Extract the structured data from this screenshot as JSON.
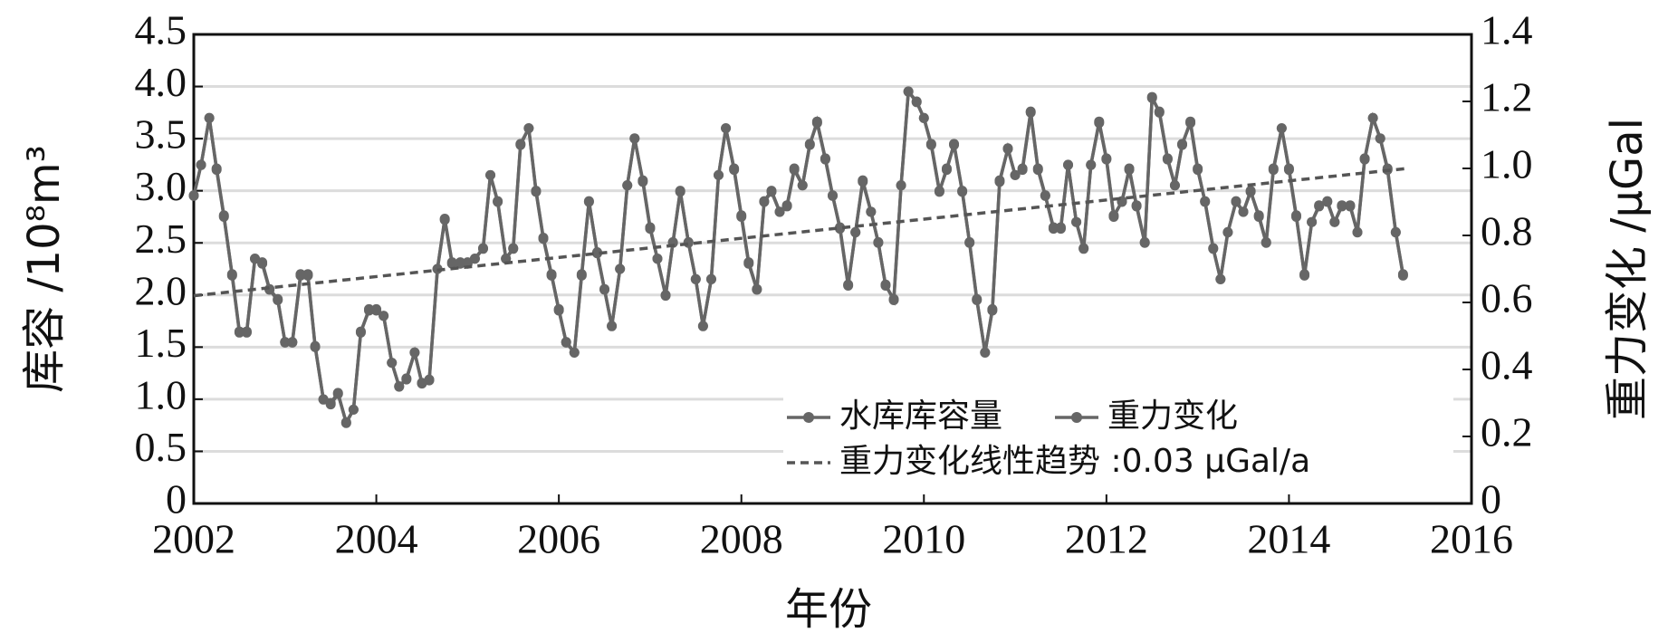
{
  "chart_data": {
    "type": "line",
    "xlabel": "年份",
    "ylabel": "库容 /10⁸m³",
    "y2label": "重力变化 /μGal",
    "xlim": [
      2002,
      2016
    ],
    "xticks": [
      2002,
      2004,
      2006,
      2008,
      2010,
      2012,
      2014,
      2016
    ],
    "ylim": [
      0,
      4.5
    ],
    "yticks": [
      0,
      0.5,
      {
        "value": 1,
        "label": "1.0"
      },
      1.5,
      {
        "value": 2,
        "label": "2.0"
      },
      2.5,
      {
        "value": 3,
        "label": "3.0"
      },
      3.5,
      {
        "value": 4,
        "label": "4.0"
      },
      4.5
    ],
    "y2lim": [
      0,
      1.4
    ],
    "y2ticks": [
      0,
      0.2,
      0.4,
      0.6,
      0.8,
      {
        "value": 1,
        "label": "1.0"
      },
      1.2,
      1.4
    ],
    "grid": true,
    "legend": "lower right",
    "x": [
      2002.0,
      2002.08,
      2002.17,
      2002.25,
      2002.33,
      2002.42,
      2002.5,
      2002.58,
      2002.67,
      2002.75,
      2002.83,
      2002.92,
      2003.0,
      2003.08,
      2003.17,
      2003.25,
      2003.33,
      2003.42,
      2003.5,
      2003.58,
      2003.67,
      2003.75,
      2003.83,
      2003.92,
      2004.0,
      2004.08,
      2004.17,
      2004.25,
      2004.33,
      2004.42,
      2004.5,
      2004.58,
      2004.67,
      2004.75,
      2004.83,
      2004.92,
      2005.0,
      2005.08,
      2005.17,
      2005.25,
      2005.33,
      2005.42,
      2005.5,
      2005.58,
      2005.67,
      2005.75,
      2005.83,
      2005.92,
      2006.0,
      2006.08,
      2006.17,
      2006.25,
      2006.33,
      2006.42,
      2006.5,
      2006.58,
      2006.67,
      2006.75,
      2006.83,
      2006.92,
      2007.0,
      2007.08,
      2007.17,
      2007.25,
      2007.33,
      2007.42,
      2007.5,
      2007.58,
      2007.67,
      2007.75,
      2007.83,
      2007.92,
      2008.0,
      2008.08,
      2008.17,
      2008.25,
      2008.33,
      2008.42,
      2008.5,
      2008.58,
      2008.67,
      2008.75,
      2008.83,
      2008.92,
      2009.0,
      2009.08,
      2009.17,
      2009.25,
      2009.33,
      2009.42,
      2009.5,
      2009.58,
      2009.67,
      2009.75,
      2009.83,
      2009.92,
      2010.0,
      2010.08,
      2010.17,
      2010.25,
      2010.33,
      2010.42,
      2010.5,
      2010.58,
      2010.67,
      2010.75,
      2010.83,
      2010.92,
      2011.0,
      2011.08,
      2011.17,
      2011.25,
      2011.33,
      2011.42,
      2011.5,
      2011.58,
      2011.67,
      2011.75,
      2011.83,
      2011.92,
      2012.0,
      2012.08,
      2012.17,
      2012.25,
      2012.33,
      2012.42,
      2012.5,
      2012.58,
      2012.67,
      2012.75,
      2012.83,
      2012.92,
      2013.0,
      2013.08,
      2013.17,
      2013.25,
      2013.33,
      2013.42,
      2013.5,
      2013.58,
      2013.67,
      2013.75,
      2013.83,
      2013.92,
      2014.0,
      2014.08,
      2014.17,
      2014.25,
      2014.33,
      2014.42,
      2014.5,
      2014.58,
      2014.67,
      2014.75,
      2014.83,
      2014.92,
      2015.0,
      2015.08,
      2015.17,
      2015.25
    ],
    "series": [
      {
        "name": "水库库容量",
        "color": "#666666",
        "axis": "y",
        "values": [
          2.95,
          3.25,
          3.7,
          3.2,
          2.75,
          2.2,
          1.65,
          1.65,
          2.35,
          2.3,
          2.05,
          1.95,
          1.55,
          1.55,
          2.2,
          2.2,
          1.5,
          1.0,
          0.95,
          1.05,
          0.78,
          0.9,
          1.65,
          1.85,
          1.85,
          1.8,
          1.35,
          1.12,
          1.2,
          1.45,
          1.15,
          1.18,
          2.25,
          2.72,
          2.3,
          2.3,
          2.3,
          2.35,
          2.45,
          3.15,
          2.9,
          2.35,
          2.45,
          3.45,
          3.6,
          3.0,
          2.55,
          2.2,
          1.85,
          1.55,
          1.45,
          2.2,
          2.9,
          2.4,
          2.05,
          1.7,
          2.25,
          3.05,
          3.5,
          3.1,
          2.65,
          2.35,
          2.0,
          2.5,
          3.0,
          2.5,
          2.15,
          1.7,
          2.15,
          3.15,
          3.6,
          3.2,
          2.75,
          2.3,
          2.05,
          2.9,
          3.0,
          2.8,
          2.85,
          3.2,
          3.05,
          3.45,
          3.65,
          3.3,
          2.95,
          2.65,
          2.1,
          2.6,
          3.1,
          2.8,
          2.5,
          2.1,
          1.95,
          3.05,
          3.95,
          3.85,
          3.7,
          3.45,
          3.0,
          3.2,
          3.45,
          3.0,
          2.5,
          1.95,
          1.45,
          1.85,
          3.1,
          3.4,
          3.15,
          3.2,
          3.75,
          3.2,
          2.95,
          2.65,
          2.65,
          3.25,
          2.7,
          2.45,
          3.25,
          3.65,
          3.3,
          2.75,
          2.9,
          3.2,
          2.85,
          2.5,
          3.9,
          3.75,
          3.3,
          3.05,
          3.45,
          3.65,
          3.2,
          2.9,
          2.45,
          2.15,
          2.6,
          2.9,
          2.8,
          3.0,
          2.75,
          2.5,
          3.2,
          3.6,
          3.2,
          2.75,
          2.2,
          2.7,
          2.85,
          2.9,
          2.7,
          2.85,
          2.85,
          2.6,
          3.3,
          3.7,
          3.5,
          3.2,
          2.6,
          2.2
        ]
      },
      {
        "name": "重力变化",
        "color": "#666666",
        "axis": "y2",
        "values": [
          0.92,
          1.01,
          1.15,
          1.0,
          0.86,
          0.68,
          0.51,
          0.51,
          0.73,
          0.72,
          0.64,
          0.61,
          0.48,
          0.48,
          0.68,
          0.68,
          0.47,
          0.31,
          0.3,
          0.33,
          0.24,
          0.28,
          0.51,
          0.58,
          0.58,
          0.56,
          0.42,
          0.35,
          0.37,
          0.45,
          0.36,
          0.37,
          0.7,
          0.85,
          0.72,
          0.72,
          0.72,
          0.73,
          0.76,
          0.98,
          0.9,
          0.73,
          0.76,
          1.07,
          1.12,
          0.93,
          0.79,
          0.68,
          0.58,
          0.48,
          0.45,
          0.68,
          0.9,
          0.75,
          0.64,
          0.53,
          0.7,
          0.95,
          1.09,
          0.96,
          0.82,
          0.73,
          0.62,
          0.78,
          0.93,
          0.78,
          0.67,
          0.53,
          0.67,
          0.98,
          1.12,
          1.0,
          0.86,
          0.72,
          0.64,
          0.9,
          0.93,
          0.87,
          0.89,
          1.0,
          0.95,
          1.07,
          1.14,
          1.03,
          0.92,
          0.82,
          0.65,
          0.81,
          0.96,
          0.87,
          0.78,
          0.65,
          0.61,
          0.95,
          1.23,
          1.2,
          1.15,
          1.07,
          0.93,
          1.0,
          1.07,
          0.93,
          0.78,
          0.61,
          0.45,
          0.58,
          0.96,
          1.06,
          0.98,
          1.0,
          1.17,
          1.0,
          0.92,
          0.82,
          0.82,
          1.01,
          0.84,
          0.76,
          1.01,
          1.14,
          1.03,
          0.86,
          0.9,
          1.0,
          0.89,
          0.78,
          1.21,
          1.17,
          1.03,
          0.95,
          1.07,
          1.14,
          1.0,
          0.9,
          0.76,
          0.67,
          0.81,
          0.9,
          0.87,
          0.93,
          0.86,
          0.78,
          1.0,
          1.12,
          1.0,
          0.86,
          0.68,
          0.84,
          0.89,
          0.9,
          0.84,
          0.89,
          0.89,
          0.81,
          1.03,
          1.15,
          1.09,
          1.0,
          0.81,
          0.68
        ]
      }
    ],
    "trend": {
      "name": "重力变化线性趋势 :0.03 μGal/a",
      "color": "#555555",
      "axis": "y2",
      "style": "dashed",
      "x": [
        2002,
        2015.3
      ],
      "values": [
        0.62,
        1.0
      ]
    }
  }
}
